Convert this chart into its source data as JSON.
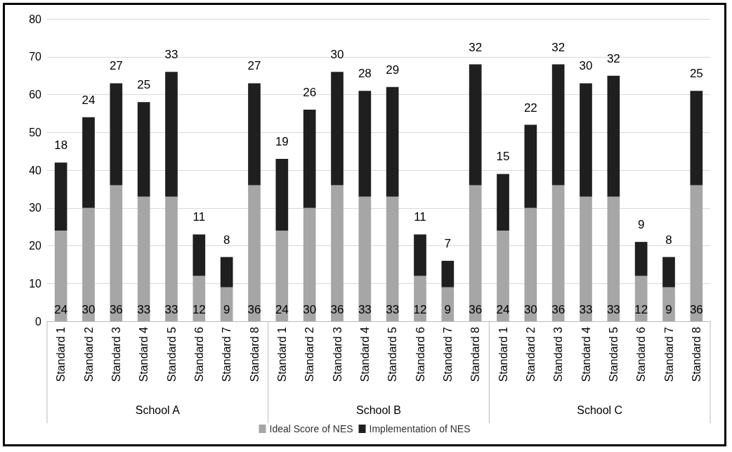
{
  "chart_data": {
    "type": "bar",
    "stacked": true,
    "categories": [
      "Standard 1",
      "Standard 2",
      "Standard 3",
      "Standard 4",
      "Standard 5",
      "Standard 6",
      "Standard 7",
      "Standard 8",
      "Standard 1",
      "Standard 2",
      "Standard 3",
      "Standard 4",
      "Standard 5",
      "Standard 6",
      "Standard 7",
      "Standard 8",
      "Standard 1",
      "Standard 2",
      "Standard 3",
      "Standard 4",
      "Standard 5",
      "Standard 6",
      "Standard 7",
      "Standard 8"
    ],
    "series": [
      {
        "name": "Ideal Score of NES",
        "color": "#a6a6a6",
        "values": [
          24,
          30,
          36,
          33,
          33,
          12,
          9,
          36,
          24,
          30,
          36,
          33,
          33,
          12,
          9,
          36,
          24,
          30,
          36,
          33,
          33,
          12,
          9,
          36
        ]
      },
      {
        "name": "Implementation of NES",
        "color": "#1f1f1f",
        "values": [
          18,
          24,
          27,
          25,
          33,
          11,
          8,
          27,
          19,
          26,
          30,
          28,
          29,
          11,
          7,
          32,
          15,
          22,
          32,
          30,
          32,
          9,
          8,
          25
        ]
      }
    ],
    "ylim": [
      0,
      80
    ],
    "yticks": [
      0,
      10,
      20,
      30,
      40,
      50,
      60,
      70,
      80
    ],
    "grid": "y",
    "legend": "bottom",
    "data_labels": true,
    "annotations": [
      "School A",
      "School B",
      "School C"
    ]
  }
}
